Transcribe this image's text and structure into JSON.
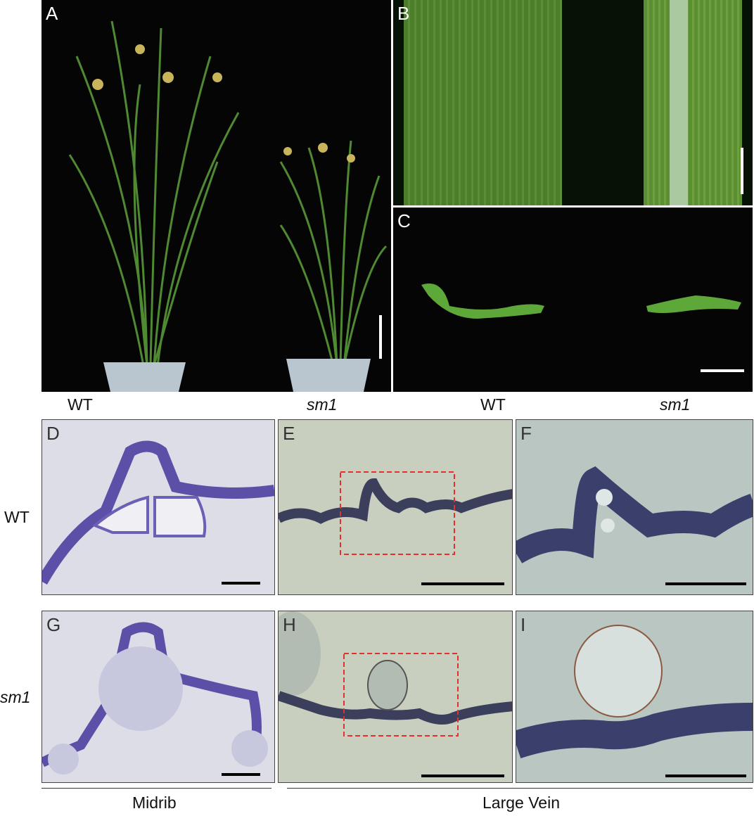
{
  "panels": {
    "a": "A",
    "b": "B",
    "c": "C",
    "d": "D",
    "e": "E",
    "f": "F",
    "g": "G",
    "h": "H",
    "i": "I"
  },
  "top_labels": [
    "WT",
    "sm1",
    "WT",
    "sm1"
  ],
  "row_labels": [
    "WT",
    "sm1"
  ],
  "bottom_labels": {
    "midrib": "Midrib",
    "large_vein": "Large Vein"
  },
  "colors": {
    "photo_bg": "#050505",
    "leaf": "#4c7a2a",
    "stain": "#5b4fa8",
    "micro_bg_d": "#dcdde6",
    "micro_bg_e": "#c9cfbf",
    "highlight_box": "#e53030"
  }
}
